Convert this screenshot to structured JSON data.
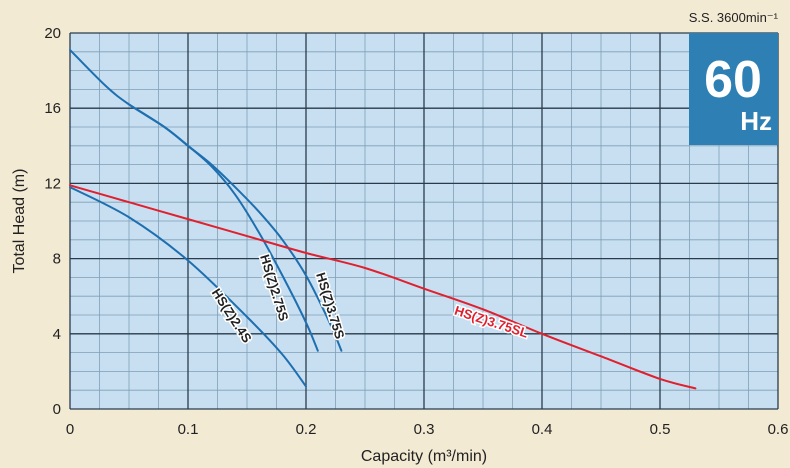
{
  "chart_data": {
    "type": "line",
    "title": "",
    "xlabel": "Capacity (m³/min)",
    "ylabel": "Total Head (m)",
    "xlim": [
      0,
      0.6
    ],
    "ylim": [
      0,
      20
    ],
    "x_ticks": [
      0,
      0.1,
      0.2,
      0.3,
      0.4,
      0.5,
      0.6
    ],
    "x_tick_labels": [
      "0",
      "0.1",
      "0.2",
      "0.3",
      "0.4",
      "0.5",
      "0.6"
    ],
    "y_ticks": [
      0,
      4,
      8,
      12,
      16,
      20
    ],
    "y_tick_labels": [
      "0",
      "4",
      "8",
      "12",
      "16",
      "20"
    ],
    "grid": true,
    "legend": "none",
    "series": [
      {
        "name": "HS(Z)2.4S",
        "color": "#1e6fb0",
        "x": [
          0,
          0.05,
          0.1,
          0.15,
          0.18,
          0.2
        ],
        "y": [
          11.8,
          10.2,
          7.9,
          4.9,
          2.9,
          1.2
        ]
      },
      {
        "name": "HS(Z)2.75S",
        "color": "#1e6fb0",
        "x": [
          0,
          0.03,
          0.05,
          0.08,
          0.1,
          0.12,
          0.14,
          0.16,
          0.18,
          0.2,
          0.21
        ],
        "y": [
          19.1,
          17.2,
          16.2,
          15.0,
          14.0,
          12.9,
          11.4,
          9.4,
          7.1,
          4.6,
          3.1
        ]
      },
      {
        "name": "HS(Z)3.75S",
        "color": "#1e6fb0",
        "x": [
          0.05,
          0.08,
          0.1,
          0.12,
          0.14,
          0.16,
          0.18,
          0.2,
          0.22,
          0.23
        ],
        "y": [
          16.2,
          15.0,
          14.0,
          13.0,
          11.8,
          10.5,
          9.0,
          7.1,
          4.6,
          3.1
        ]
      },
      {
        "name": "HS(Z)3.75SL",
        "color": "#e0202e",
        "x": [
          0,
          0.05,
          0.1,
          0.15,
          0.2,
          0.25,
          0.3,
          0.35,
          0.4,
          0.45,
          0.5,
          0.53
        ],
        "y": [
          11.9,
          11.0,
          10.1,
          9.2,
          8.3,
          7.5,
          6.4,
          5.3,
          4.0,
          2.8,
          1.6,
          1.1
        ]
      }
    ],
    "curve_labels": [
      "HS(Z)2.4S",
      "HS(Z)2.75S",
      "HS(Z)3.75S",
      "HS(Z)3.75SL"
    ],
    "speed_note": "S.S. 3600min⁻¹",
    "frequency_badge": {
      "value": "60",
      "unit": "Hz",
      "color": "#2d7fb4"
    },
    "plot_background": "#c7dff1",
    "grid_color_major": "#2a3c4c",
    "grid_color_minor": "#7f9fb6"
  }
}
